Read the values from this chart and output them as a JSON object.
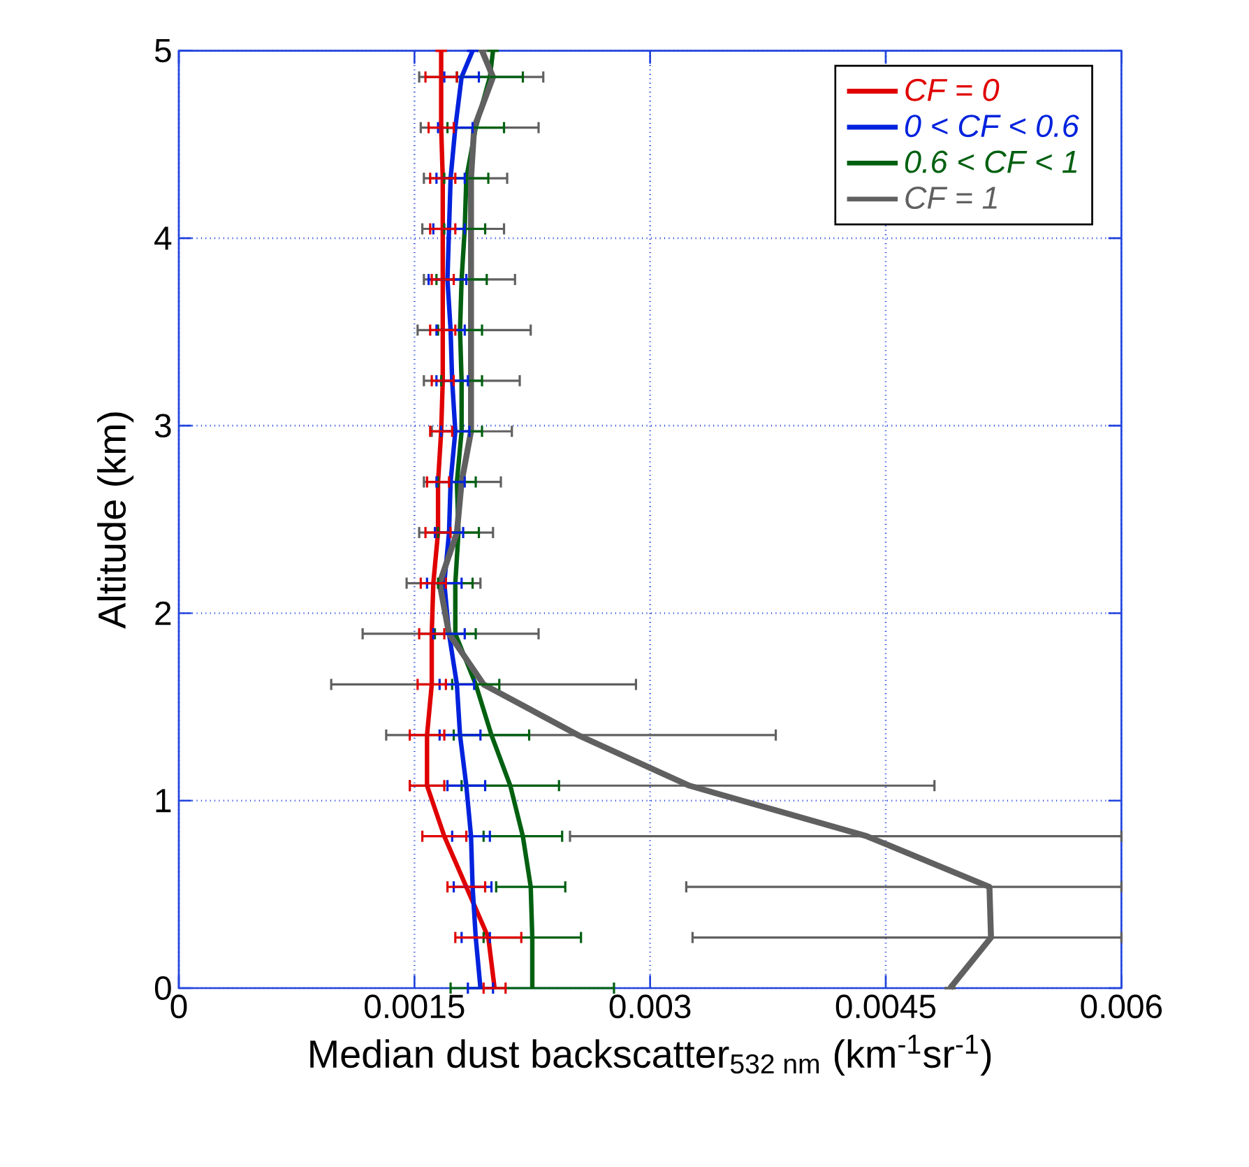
{
  "chart_data": {
    "type": "line",
    "xlabel": "Median dust backscatter$_{532 nm}$ (km$^{-1}$sr$^{-1}$)",
    "ylabel": "Altitude (km)",
    "xlim": [
      0,
      0.006
    ],
    "ylim": [
      0,
      5
    ],
    "xticks": [
      0,
      0.0015,
      0.003,
      0.0045,
      0.006
    ],
    "yticks": [
      0,
      1,
      2,
      3,
      4,
      5
    ],
    "grid": true,
    "legend": "top right",
    "series": [
      {
        "name": "CF = 0",
        "color": "#e00000",
        "x": [
          0.00201,
          0.00197,
          0.00183,
          0.00169,
          0.00158,
          0.00158,
          0.00161,
          0.00161,
          0.00162,
          0.00165,
          0.00165,
          0.00167,
          0.00168,
          0.00168,
          0.00168,
          0.00168,
          0.00168,
          0.00167,
          0.00167,
          0.00167
        ],
        "values": [
          0,
          0.27,
          0.54,
          0.81,
          1.08,
          1.35,
          1.62,
          1.89,
          2.16,
          2.43,
          2.7,
          2.97,
          3.24,
          3.51,
          3.78,
          4.05,
          4.32,
          4.59,
          4.86,
          5
        ],
        "xerrors": [
          7e-05,
          0.00021,
          0.00012,
          0.00014,
          0.00011,
          0.00011,
          9e-05,
          8e-05,
          8e-05,
          8e-05,
          7e-05,
          7e-05,
          7e-05,
          8e-05,
          7e-05,
          8e-05,
          8e-05,
          8e-05,
          0.0001,
          null
        ]
      },
      {
        "name": "0 < CF < 0.6",
        "color": "#0022dd",
        "x": [
          0.00192,
          0.00189,
          0.00187,
          0.00186,
          0.00183,
          0.00179,
          0.00177,
          0.00172,
          0.00169,
          0.00172,
          0.00173,
          0.00176,
          0.00174,
          0.00173,
          0.00171,
          0.00172,
          0.00173,
          0.00176,
          0.0018,
          0.00187
        ],
        "values": [
          0,
          0.27,
          0.54,
          0.81,
          1.08,
          1.35,
          1.62,
          1.89,
          2.16,
          2.43,
          2.7,
          2.97,
          3.24,
          3.51,
          3.78,
          4.05,
          4.32,
          4.59,
          4.86,
          5
        ],
        "xerrors": [
          8e-05,
          9e-05,
          0.00012,
          0.00012,
          0.00012,
          0.00013,
          0.00011,
          0.0001,
          0.00011,
          9e-05,
          9e-05,
          9e-05,
          0.0001,
          9e-05,
          0.00012,
          0.0001,
          9e-05,
          0.00011,
          0.00011,
          null
        ]
      },
      {
        "name": "0.6 < CF < 1",
        "color": "#006010",
        "x": [
          0.00225,
          0.00225,
          0.00224,
          0.00219,
          0.00211,
          0.00199,
          0.00189,
          0.00176,
          0.00176,
          0.00178,
          0.00177,
          0.0018,
          0.0018,
          0.00179,
          0.0018,
          0.00182,
          0.00183,
          0.00189,
          0.00198,
          0.002
        ],
        "values": [
          0,
          0.27,
          0.54,
          0.81,
          1.08,
          1.35,
          1.62,
          1.89,
          2.16,
          2.43,
          2.7,
          2.97,
          3.24,
          3.51,
          3.78,
          4.05,
          4.32,
          4.59,
          4.86,
          5
        ],
        "xerrors": [
          0.00052,
          0.00031,
          0.00022,
          0.00025,
          0.00031,
          0.00024,
          0.00015,
          0.00013,
          0.00011,
          0.00013,
          0.00012,
          0.00013,
          0.00013,
          0.00014,
          0.00016,
          0.00013,
          0.00014,
          0.00018,
          0.00021,
          null
        ]
      },
      {
        "name": "CF = 1",
        "color": "#606060",
        "x": [
          0.00491,
          0.00517,
          0.00516,
          0.00438,
          0.00325,
          0.00254,
          0.00194,
          0.00172,
          0.00166,
          0.00177,
          0.0018,
          0.00186,
          0.00186,
          0.00186,
          0.00186,
          0.00186,
          0.00186,
          0.00188,
          0.002,
          0.00193
        ],
        "values": [
          0,
          0.27,
          0.54,
          0.81,
          1.08,
          1.35,
          1.62,
          1.89,
          2.16,
          2.43,
          2.7,
          2.97,
          3.24,
          3.51,
          3.78,
          4.05,
          4.32,
          4.59,
          4.86,
          5
        ],
        "xerrors": [
          null,
          [
            0.00327,
            0.006
          ],
          [
            0.00323,
            0.006
          ],
          [
            0.00249,
            0.006
          ],
          [
            0.00147,
            0.00481
          ],
          [
            0.00132,
            0.0038
          ],
          [
            0.00097,
            0.00291
          ],
          [
            0.00117,
            0.00229
          ],
          [
            0.00145,
            0.00192
          ],
          [
            0.00153,
            0.002
          ],
          [
            0.00156,
            0.00205
          ],
          [
            0.00161,
            0.00212
          ],
          [
            0.00156,
            0.00217
          ],
          [
            0.00152,
            0.00224
          ],
          [
            0.00156,
            0.00214
          ],
          [
            0.00155,
            0.00207
          ],
          [
            0.00156,
            0.00209
          ],
          [
            0.00154,
            0.00229
          ],
          [
            0.00153,
            0.00232
          ],
          null
        ]
      }
    ]
  }
}
